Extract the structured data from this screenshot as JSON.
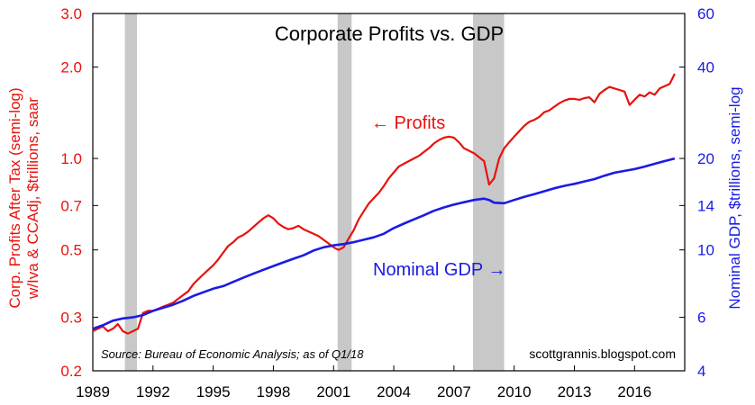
{
  "chart_data": {
    "type": "line",
    "title": "Corporate Profits vs. GDP",
    "source": "Source: Bureau of Economic Analysis; as of Q1/18",
    "credit": "scottgrannis.blogspot.com",
    "y_left_label_line1": "Corp. Profits After Tax (semi-log)",
    "y_left_label_line2": "w/Iva & CCAdj, $trillions, saar",
    "y_right_label": "Nominal GDP, $trillions, semi-log",
    "x_range": [
      1989,
      2018.5
    ],
    "x_ticks": [
      {
        "value": 1989,
        "label": "1989"
      },
      {
        "value": 1992,
        "label": "1992"
      },
      {
        "value": 1995,
        "label": "1995"
      },
      {
        "value": 1998,
        "label": "1998"
      },
      {
        "value": 2001,
        "label": "2001"
      },
      {
        "value": 2004,
        "label": "2004"
      },
      {
        "value": 2007,
        "label": "2007"
      },
      {
        "value": 2010,
        "label": "2010"
      },
      {
        "value": 2013,
        "label": "2013"
      },
      {
        "value": 2016,
        "label": "2016"
      }
    ],
    "y_left": {
      "scale": "log",
      "range": [
        0.2,
        3.0
      ],
      "ticks": [
        {
          "value": 0.2,
          "label": "0.2"
        },
        {
          "value": 0.3,
          "label": "0.3"
        },
        {
          "value": 0.5,
          "label": "0.5"
        },
        {
          "value": 0.7,
          "label": "0.7"
        },
        {
          "value": 1.0,
          "label": "1.0"
        },
        {
          "value": 2.0,
          "label": "2.0"
        },
        {
          "value": 3.0,
          "label": "3.0"
        }
      ]
    },
    "y_right": {
      "scale": "log",
      "range": [
        4,
        60
      ],
      "ticks": [
        {
          "value": 4,
          "label": "4"
        },
        {
          "value": 6,
          "label": "6"
        },
        {
          "value": 10,
          "label": "10"
        },
        {
          "value": 14,
          "label": "14"
        },
        {
          "value": 20,
          "label": "20"
        },
        {
          "value": 40,
          "label": "40"
        },
        {
          "value": 60,
          "label": "60"
        }
      ]
    },
    "grid": false,
    "recessions": [
      [
        1990.6,
        1991.2
      ],
      [
        2001.2,
        2001.9
      ],
      [
        2007.95,
        2009.5
      ]
    ],
    "annotations": [
      {
        "text": "← Profits",
        "color": "#e8120c"
      },
      {
        "text": "Nominal GDP →",
        "color": "#1a1ae6"
      }
    ],
    "series": [
      {
        "id": "profits",
        "axis": "left",
        "color": "#e8120c",
        "points": [
          [
            1989.0,
            0.27
          ],
          [
            1989.25,
            0.275
          ],
          [
            1989.5,
            0.28
          ],
          [
            1989.75,
            0.27
          ],
          [
            1990.0,
            0.275
          ],
          [
            1990.25,
            0.285
          ],
          [
            1990.5,
            0.27
          ],
          [
            1990.75,
            0.265
          ],
          [
            1991.0,
            0.27
          ],
          [
            1991.25,
            0.275
          ],
          [
            1991.5,
            0.31
          ],
          [
            1991.75,
            0.315
          ],
          [
            1992.0,
            0.315
          ],
          [
            1992.25,
            0.32
          ],
          [
            1992.5,
            0.325
          ],
          [
            1992.75,
            0.33
          ],
          [
            1993.0,
            0.335
          ],
          [
            1993.25,
            0.345
          ],
          [
            1993.5,
            0.355
          ],
          [
            1993.75,
            0.365
          ],
          [
            1994.0,
            0.385
          ],
          [
            1994.25,
            0.4
          ],
          [
            1994.5,
            0.415
          ],
          [
            1994.75,
            0.43
          ],
          [
            1995.0,
            0.445
          ],
          [
            1995.25,
            0.465
          ],
          [
            1995.5,
            0.49
          ],
          [
            1995.75,
            0.515
          ],
          [
            1996.0,
            0.53
          ],
          [
            1996.25,
            0.55
          ],
          [
            1996.5,
            0.56
          ],
          [
            1996.75,
            0.575
          ],
          [
            1997.0,
            0.595
          ],
          [
            1997.25,
            0.615
          ],
          [
            1997.5,
            0.635
          ],
          [
            1997.75,
            0.65
          ],
          [
            1998.0,
            0.635
          ],
          [
            1998.25,
            0.61
          ],
          [
            1998.5,
            0.595
          ],
          [
            1998.75,
            0.585
          ],
          [
            1999.0,
            0.59
          ],
          [
            1999.25,
            0.6
          ],
          [
            1999.5,
            0.585
          ],
          [
            1999.75,
            0.575
          ],
          [
            2000.0,
            0.565
          ],
          [
            2000.25,
            0.555
          ],
          [
            2000.5,
            0.54
          ],
          [
            2000.75,
            0.525
          ],
          [
            2001.0,
            0.51
          ],
          [
            2001.25,
            0.5
          ],
          [
            2001.5,
            0.51
          ],
          [
            2001.75,
            0.545
          ],
          [
            2002.0,
            0.58
          ],
          [
            2002.25,
            0.63
          ],
          [
            2002.5,
            0.67
          ],
          [
            2002.75,
            0.71
          ],
          [
            2003.0,
            0.74
          ],
          [
            2003.25,
            0.77
          ],
          [
            2003.5,
            0.81
          ],
          [
            2003.75,
            0.86
          ],
          [
            2004.0,
            0.9
          ],
          [
            2004.25,
            0.94
          ],
          [
            2004.5,
            0.96
          ],
          [
            2004.75,
            0.98
          ],
          [
            2005.0,
            1.0
          ],
          [
            2005.25,
            1.02
          ],
          [
            2005.5,
            1.05
          ],
          [
            2005.75,
            1.08
          ],
          [
            2006.0,
            1.12
          ],
          [
            2006.25,
            1.15
          ],
          [
            2006.5,
            1.17
          ],
          [
            2006.75,
            1.18
          ],
          [
            2007.0,
            1.17
          ],
          [
            2007.25,
            1.13
          ],
          [
            2007.5,
            1.08
          ],
          [
            2007.75,
            1.06
          ],
          [
            2008.0,
            1.04
          ],
          [
            2008.25,
            1.01
          ],
          [
            2008.5,
            0.98
          ],
          [
            2008.75,
            0.82
          ],
          [
            2009.0,
            0.86
          ],
          [
            2009.25,
            1.0
          ],
          [
            2009.5,
            1.08
          ],
          [
            2009.75,
            1.13
          ],
          [
            2010.0,
            1.18
          ],
          [
            2010.25,
            1.23
          ],
          [
            2010.5,
            1.28
          ],
          [
            2010.75,
            1.32
          ],
          [
            2011.0,
            1.34
          ],
          [
            2011.25,
            1.37
          ],
          [
            2011.5,
            1.42
          ],
          [
            2011.75,
            1.44
          ],
          [
            2012.0,
            1.48
          ],
          [
            2012.25,
            1.52
          ],
          [
            2012.5,
            1.55
          ],
          [
            2012.75,
            1.57
          ],
          [
            2013.0,
            1.57
          ],
          [
            2013.25,
            1.56
          ],
          [
            2013.5,
            1.58
          ],
          [
            2013.75,
            1.59
          ],
          [
            2014.0,
            1.53
          ],
          [
            2014.25,
            1.63
          ],
          [
            2014.5,
            1.68
          ],
          [
            2014.75,
            1.72
          ],
          [
            2015.0,
            1.7
          ],
          [
            2015.25,
            1.68
          ],
          [
            2015.5,
            1.66
          ],
          [
            2015.75,
            1.5
          ],
          [
            2016.0,
            1.56
          ],
          [
            2016.25,
            1.62
          ],
          [
            2016.5,
            1.6
          ],
          [
            2016.75,
            1.65
          ],
          [
            2017.0,
            1.62
          ],
          [
            2017.25,
            1.7
          ],
          [
            2017.5,
            1.73
          ],
          [
            2017.75,
            1.76
          ],
          [
            2018.0,
            1.9
          ]
        ]
      },
      {
        "id": "gdp",
        "axis": "right",
        "color": "#1a1ae6",
        "points": [
          [
            1989.0,
            5.5
          ],
          [
            1989.5,
            5.65
          ],
          [
            1990.0,
            5.85
          ],
          [
            1990.5,
            5.95
          ],
          [
            1991.0,
            6.0
          ],
          [
            1991.5,
            6.1
          ],
          [
            1992.0,
            6.3
          ],
          [
            1992.5,
            6.45
          ],
          [
            1993.0,
            6.6
          ],
          [
            1993.5,
            6.8
          ],
          [
            1994.0,
            7.05
          ],
          [
            1994.5,
            7.25
          ],
          [
            1995.0,
            7.45
          ],
          [
            1995.5,
            7.6
          ],
          [
            1996.0,
            7.85
          ],
          [
            1996.5,
            8.1
          ],
          [
            1997.0,
            8.35
          ],
          [
            1997.5,
            8.6
          ],
          [
            1998.0,
            8.85
          ],
          [
            1998.5,
            9.1
          ],
          [
            1999.0,
            9.35
          ],
          [
            1999.5,
            9.6
          ],
          [
            2000.0,
            9.95
          ],
          [
            2000.5,
            10.2
          ],
          [
            2001.0,
            10.35
          ],
          [
            2001.5,
            10.45
          ],
          [
            2002.0,
            10.6
          ],
          [
            2002.5,
            10.8
          ],
          [
            2003.0,
            11.0
          ],
          [
            2003.5,
            11.3
          ],
          [
            2004.0,
            11.8
          ],
          [
            2004.5,
            12.2
          ],
          [
            2005.0,
            12.6
          ],
          [
            2005.5,
            13.0
          ],
          [
            2006.0,
            13.45
          ],
          [
            2006.5,
            13.8
          ],
          [
            2007.0,
            14.1
          ],
          [
            2007.5,
            14.35
          ],
          [
            2008.0,
            14.6
          ],
          [
            2008.5,
            14.75
          ],
          [
            2008.75,
            14.6
          ],
          [
            2009.0,
            14.3
          ],
          [
            2009.5,
            14.25
          ],
          [
            2010.0,
            14.6
          ],
          [
            2010.5,
            14.95
          ],
          [
            2011.0,
            15.25
          ],
          [
            2011.5,
            15.6
          ],
          [
            2012.0,
            15.95
          ],
          [
            2012.5,
            16.25
          ],
          [
            2013.0,
            16.5
          ],
          [
            2013.5,
            16.8
          ],
          [
            2014.0,
            17.1
          ],
          [
            2014.5,
            17.55
          ],
          [
            2015.0,
            17.95
          ],
          [
            2015.5,
            18.2
          ],
          [
            2016.0,
            18.45
          ],
          [
            2016.5,
            18.8
          ],
          [
            2017.0,
            19.2
          ],
          [
            2017.5,
            19.6
          ],
          [
            2018.0,
            20.0
          ]
        ]
      }
    ]
  }
}
